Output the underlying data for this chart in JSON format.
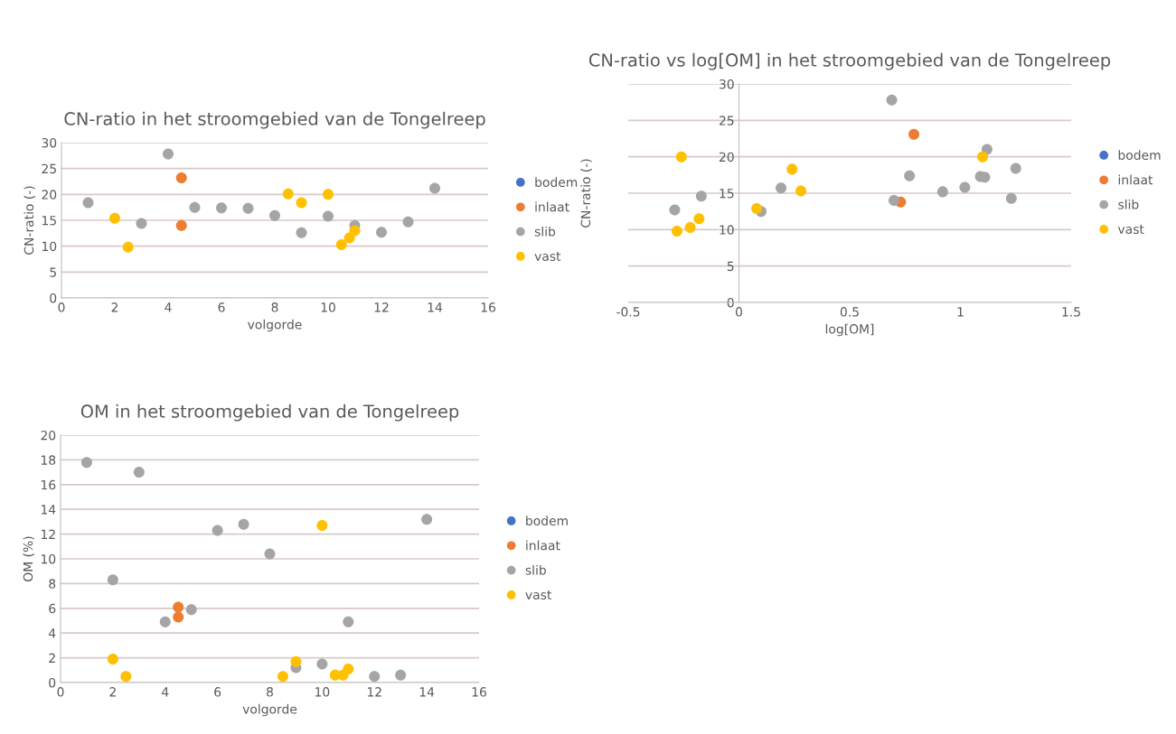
{
  "chart_data": [
    {
      "type": "scatter",
      "title": "CN-ratio in het stroomgebied van de Tongelreep",
      "xlabel": "volgorde",
      "ylabel": "CN-ratio (-)",
      "xlim": [
        0,
        16
      ],
      "xticks": [
        0,
        2,
        4,
        6,
        8,
        10,
        12,
        14,
        16
      ],
      "ylim": [
        0,
        30
      ],
      "yticks": [
        0,
        5,
        10,
        15,
        20,
        25,
        30
      ],
      "grid": "y",
      "legend": "right",
      "marker": "circle",
      "series": [
        {
          "name": "bodem",
          "color": "#4472c4"
        },
        {
          "name": "inlaat",
          "color": "#ed7d31",
          "x": [
            4.5,
            4.5
          ],
          "values": [
            23.2,
            14
          ]
        },
        {
          "name": "slib",
          "color": "#a5a5a5",
          "x": [
            1,
            3,
            4,
            5,
            6,
            7,
            8,
            9,
            10,
            11,
            12,
            13,
            14
          ],
          "values": [
            18.4,
            14.4,
            27.8,
            17.5,
            17.4,
            17.3,
            15.9,
            12.6,
            15.8,
            14,
            12.7,
            14.7,
            21.2
          ]
        },
        {
          "name": "vast",
          "color": "#ffc000",
          "x": [
            2,
            2.5,
            8.5,
            9,
            10,
            10.5,
            10.8,
            11
          ],
          "values": [
            15.4,
            9.8,
            20.1,
            18.4,
            20,
            10.3,
            11.6,
            13
          ]
        }
      ]
    },
    {
      "type": "scatter",
      "title": "CN-ratio vs log[OM] in het stroomgebied van de Tongelreep",
      "xlabel": "log[OM]",
      "ylabel": "CN-ratio (-)",
      "xlim": [
        -0.5,
        1.5
      ],
      "xticks": [
        -0.5,
        0,
        0.5,
        1,
        1.5
      ],
      "ylim": [
        0,
        30
      ],
      "yticks": [
        0,
        5,
        10,
        15,
        20,
        25,
        30
      ],
      "grid": "y",
      "legend": "right",
      "marker": "circle",
      "series": [
        {
          "name": "bodem",
          "color": "#4472c4"
        },
        {
          "name": "inlaat",
          "color": "#ed7d31",
          "x": [
            0.73,
            0.79
          ],
          "values": [
            13.8,
            23.1
          ]
        },
        {
          "name": "slib",
          "color": "#a5a5a5",
          "x": [
            -0.29,
            -0.17,
            0.1,
            0.19,
            0.69,
            0.7,
            0.77,
            0.92,
            1.02,
            1.09,
            1.11,
            1.12,
            1.23,
            1.25
          ],
          "values": [
            12.7,
            14.6,
            12.5,
            15.7,
            27.8,
            14,
            17.4,
            15.2,
            15.8,
            17.3,
            17.2,
            21,
            14.3,
            18.4
          ]
        },
        {
          "name": "vast",
          "color": "#ffc000",
          "x": [
            -0.26,
            -0.28,
            -0.22,
            -0.18,
            0.08,
            0.24,
            0.28,
            1.1
          ],
          "values": [
            20,
            9.8,
            10.3,
            11.5,
            12.9,
            18.3,
            15.3,
            20
          ]
        }
      ]
    },
    {
      "type": "scatter",
      "title": "OM in het stroomgebied van de Tongelreep",
      "xlabel": "volgorde",
      "ylabel": "OM (%)",
      "xlim": [
        0,
        16
      ],
      "xticks": [
        0,
        2,
        4,
        6,
        8,
        10,
        12,
        14,
        16
      ],
      "ylim": [
        0,
        20
      ],
      "yticks": [
        0,
        2,
        4,
        6,
        8,
        10,
        12,
        14,
        16,
        18,
        20
      ],
      "grid": "y",
      "legend": "right",
      "marker": "circle",
      "series": [
        {
          "name": "bodem",
          "color": "#4472c4"
        },
        {
          "name": "inlaat",
          "color": "#ed7d31",
          "x": [
            4.5,
            4.5
          ],
          "values": [
            6.1,
            5.3
          ]
        },
        {
          "name": "slib",
          "color": "#a5a5a5",
          "x": [
            1,
            2,
            3,
            4,
            5,
            6,
            7,
            8,
            9,
            10,
            11,
            12,
            13,
            14
          ],
          "values": [
            17.8,
            8.3,
            17,
            4.9,
            5.9,
            12.3,
            12.8,
            10.4,
            1.2,
            1.5,
            4.9,
            0.5,
            0.6,
            13.2
          ]
        },
        {
          "name": "vast",
          "color": "#ffc000",
          "x": [
            2,
            2.5,
            8.5,
            9,
            10,
            10.5,
            10.8,
            11
          ],
          "values": [
            1.9,
            0.5,
            0.5,
            1.7,
            12.7,
            0.6,
            0.6,
            1.1
          ]
        }
      ]
    }
  ]
}
